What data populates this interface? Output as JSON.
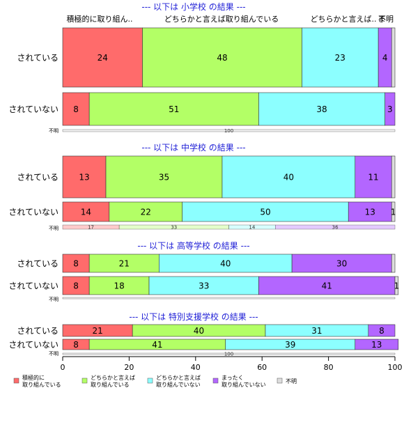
{
  "chart_data": {
    "type": "bar",
    "orientation": "horizontal",
    "stacked": true,
    "xlim": [
      0,
      100
    ],
    "x_ticks": [
      "0",
      "20",
      "40",
      "60",
      "80",
      "100"
    ],
    "column_headers": [
      "積極的に取り組ん..",
      "どちらかと言えば取り組んでいる",
      "どちらかと言えば..",
      "ま",
      "不明"
    ],
    "categories_legend": [
      {
        "lines": [
          "積極的に",
          "取り組んでいる"
        ],
        "color": "#ff6b6b"
      },
      {
        "lines": [
          "どちらかと言えば",
          "取り組んでいる"
        ],
        "color": "#b3ff66"
      },
      {
        "lines": [
          "どちらかと言えば",
          "取り組んでいない"
        ],
        "color": "#8cffff"
      },
      {
        "lines": [
          "まったく",
          "取り組んでいない"
        ],
        "color": "#b366ff"
      },
      {
        "lines": [
          "不明"
        ],
        "color": "#dddddd"
      }
    ],
    "panels": [
      {
        "title": "--- 以下は 小学校 の結果 ---",
        "rows": [
          {
            "label": "されている",
            "values": [
              24,
              48,
              23,
              4,
              1
            ],
            "value_labels": [
              "24",
              "48",
              "23",
              "4",
              ""
            ]
          },
          {
            "label": "されていない",
            "values": [
              8,
              51,
              38,
              3,
              0
            ],
            "value_labels": [
              "8",
              "51",
              "38",
              "3",
              ""
            ]
          }
        ],
        "unknown": {
          "label": "不明",
          "values": [
            0,
            0,
            0,
            0,
            100
          ],
          "value_labels": [
            "",
            "",
            "",
            "",
            "100"
          ]
        }
      },
      {
        "title": "--- 以下は 中学校 の結果 ---",
        "rows": [
          {
            "label": "されている",
            "values": [
              13,
              35,
              40,
              11,
              1
            ],
            "value_labels": [
              "13",
              "35",
              "40",
              "11",
              ""
            ]
          },
          {
            "label": "されていない",
            "values": [
              14,
              22,
              50,
              13,
              1
            ],
            "value_labels": [
              "14",
              "22",
              "50",
              "13",
              "1"
            ]
          }
        ],
        "unknown": {
          "label": "不明",
          "values": [
            17,
            33,
            14,
            36,
            0
          ],
          "value_labels": [
            "17",
            "33",
            "14",
            "36",
            ""
          ]
        }
      },
      {
        "title": "--- 以下は 高等学校 の結果 ---",
        "rows": [
          {
            "label": "されている",
            "values": [
              8,
              21,
              40,
              30,
              1
            ],
            "value_labels": [
              "8",
              "21",
              "40",
              "30",
              ""
            ]
          },
          {
            "label": "されていない",
            "values": [
              8,
              18,
              33,
              41,
              1
            ],
            "value_labels": [
              "8",
              "18",
              "33",
              "41",
              "1"
            ]
          }
        ],
        "unknown": {
          "label": "不明",
          "values": [
            0,
            0,
            0,
            0,
            100
          ],
          "value_labels": [
            "",
            "",
            "",
            "",
            ""
          ]
        }
      },
      {
        "title": "--- 以下は 特別支援学校 の結果 ---",
        "rows": [
          {
            "label": "されている",
            "values": [
              21,
              40,
              31,
              8,
              0
            ],
            "value_labels": [
              "21",
              "40",
              "31",
              "8",
              ""
            ]
          },
          {
            "label": "されていない",
            "values": [
              8,
              41,
              39,
              13,
              0
            ],
            "value_labels": [
              "8",
              "41",
              "39",
              "13",
              ""
            ]
          }
        ],
        "unknown": {
          "label": "不明",
          "values": [
            0,
            0,
            0,
            0,
            100
          ],
          "value_labels": [
            "",
            "",
            "",
            "",
            "100"
          ]
        }
      }
    ]
  }
}
